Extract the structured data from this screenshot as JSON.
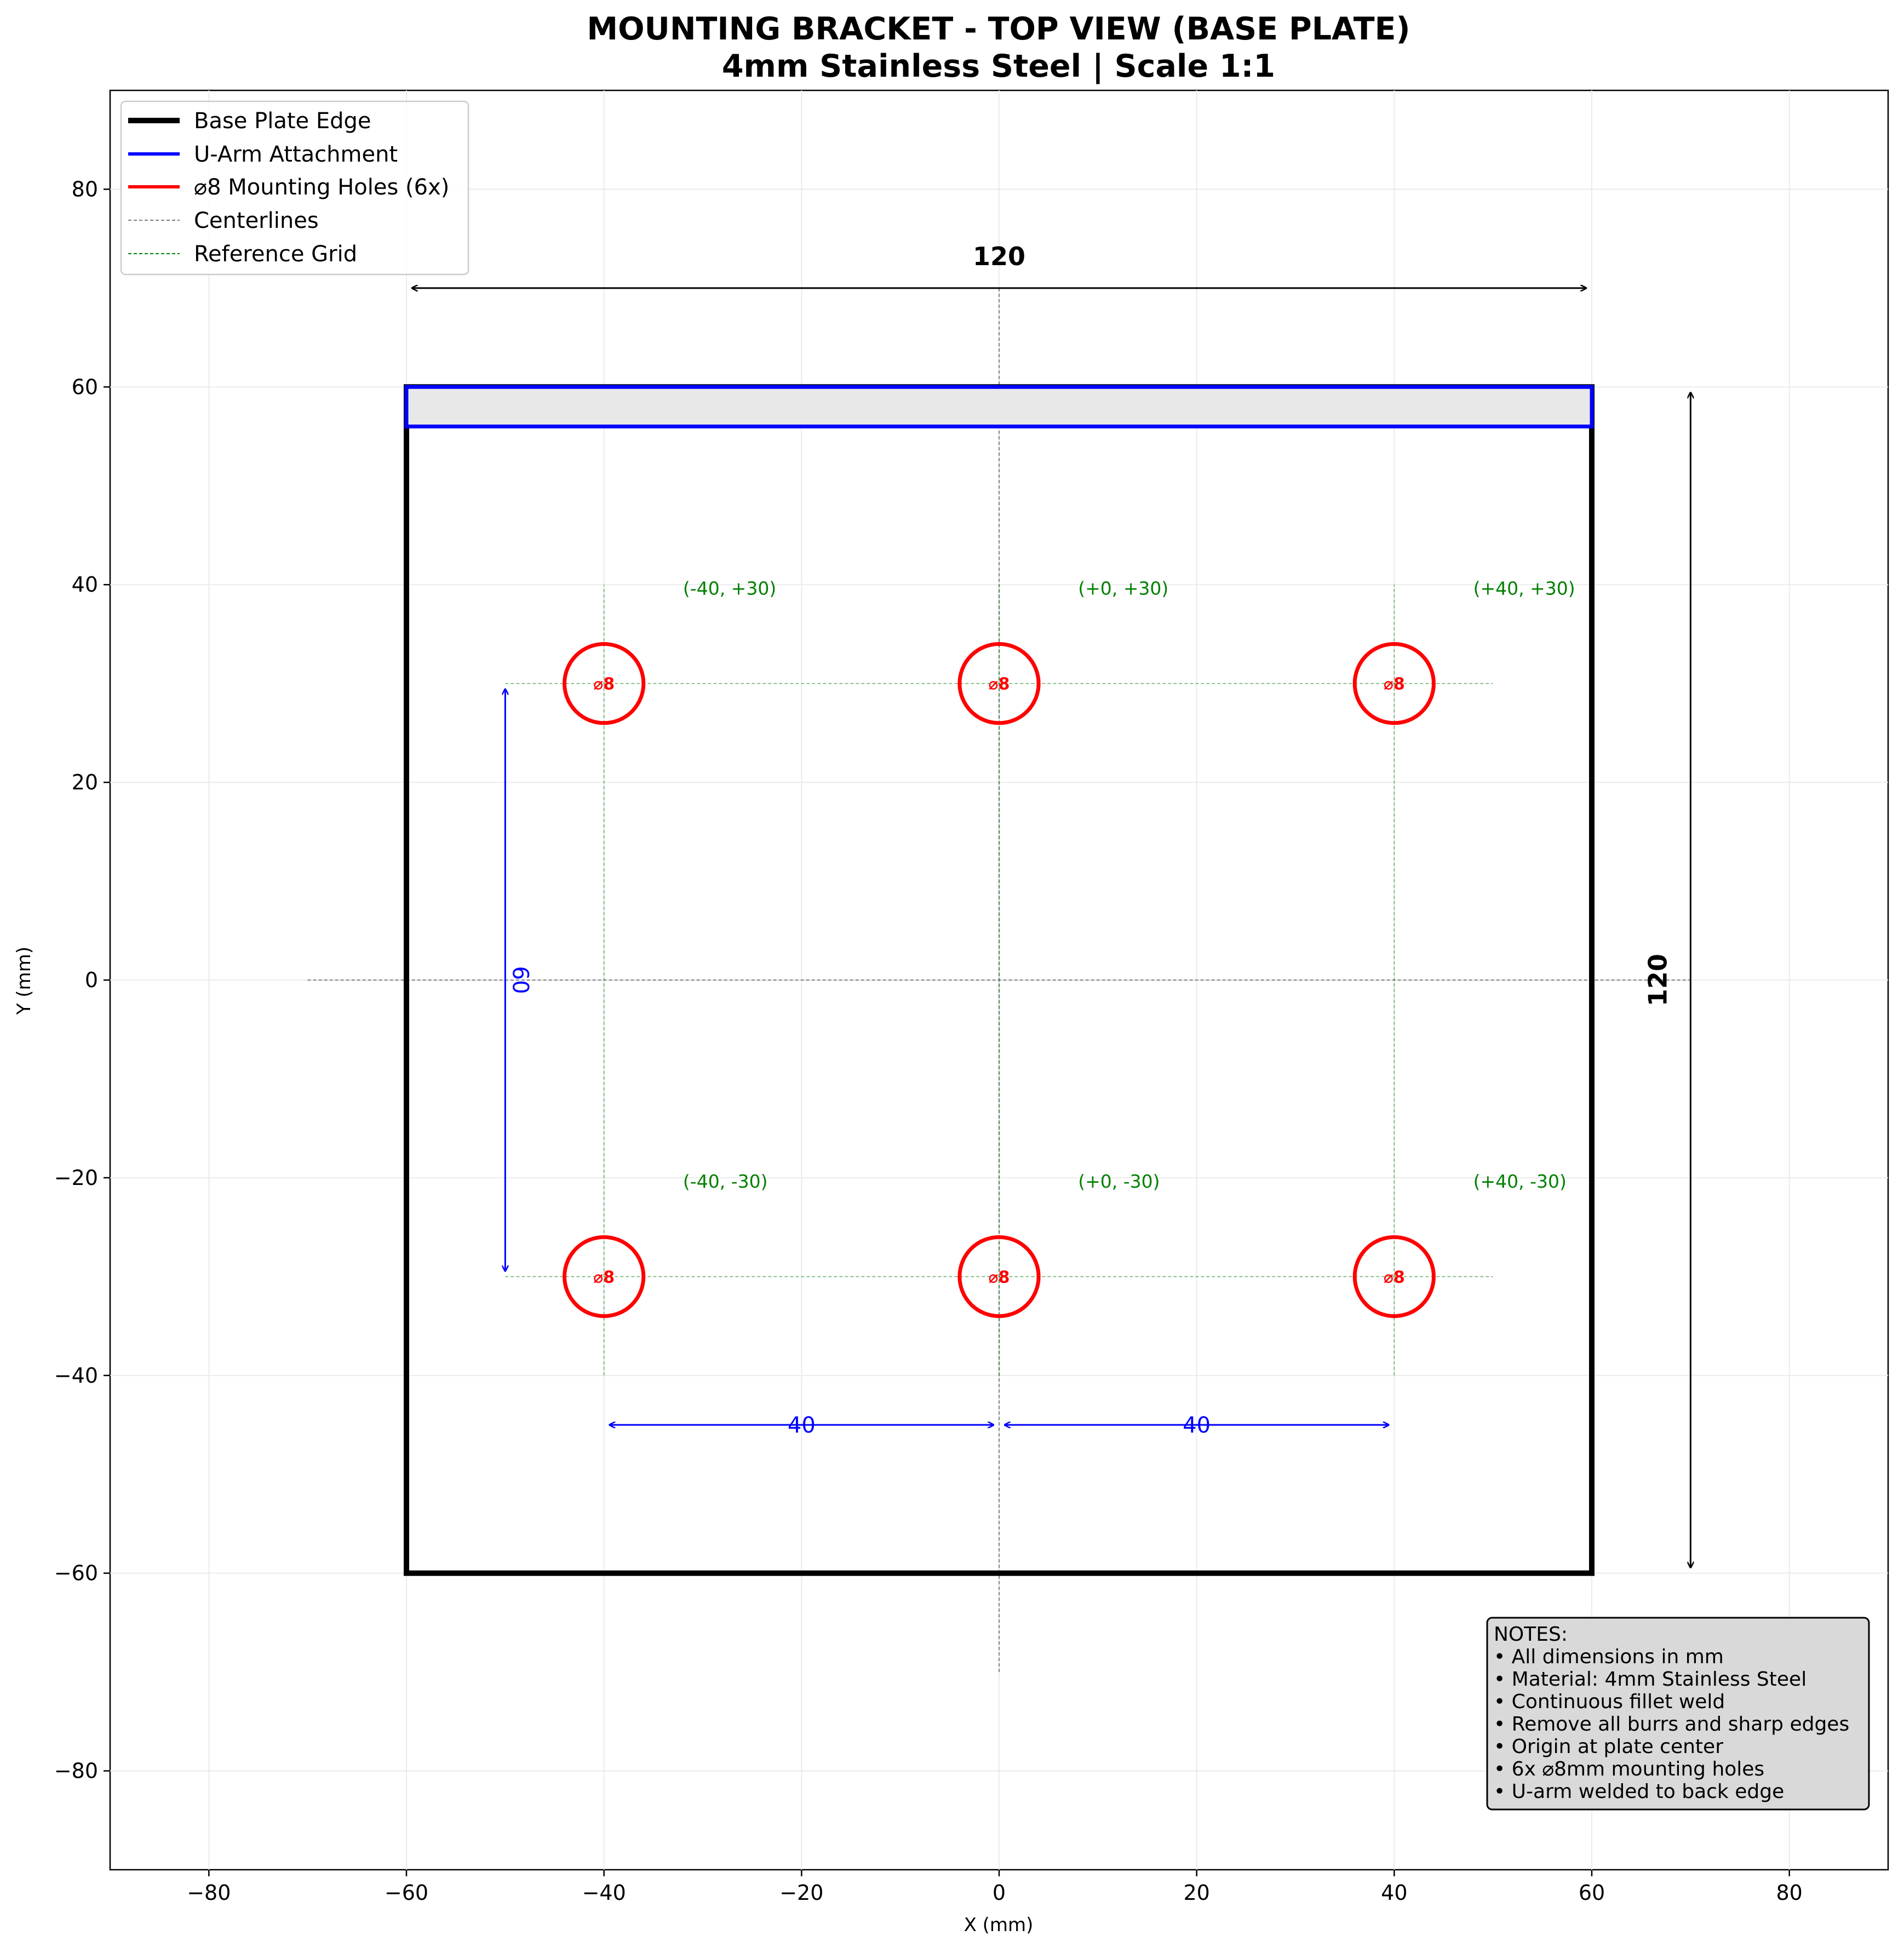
{
  "title": {
    "line1": "MOUNTING BRACKET - TOP VIEW (BASE PLATE)",
    "line2": "4mm Stainless Steel | Scale 1:1"
  },
  "axes": {
    "xlabel": "X (mm)",
    "ylabel": "Y (mm)",
    "xlim": [
      -90,
      90
    ],
    "ylim": [
      -90,
      90
    ],
    "xticks": [
      -80,
      -60,
      -40,
      -20,
      0,
      20,
      40,
      60,
      80
    ],
    "yticks": [
      -80,
      -60,
      -40,
      -20,
      0,
      20,
      40,
      60,
      80
    ],
    "xtick_labels": [
      "−80",
      "−60",
      "−40",
      "−20",
      "0",
      "20",
      "40",
      "60",
      "80"
    ],
    "ytick_labels": [
      "−80",
      "−60",
      "−40",
      "−20",
      "0",
      "20",
      "40",
      "60",
      "80"
    ],
    "grid": true
  },
  "legend": {
    "placement": "top-left",
    "items": [
      {
        "label": "Base Plate Edge",
        "color": "#000000",
        "style": "solid-thick"
      },
      {
        "label": "U-Arm Attachment",
        "color": "#0000ff",
        "style": "solid"
      },
      {
        "label": "⌀8 Mounting Holes (6x)",
        "color": "#ff0000",
        "style": "solid"
      },
      {
        "label": "Centerlines",
        "color": "#808080",
        "style": "dashed"
      },
      {
        "label": "Reference Grid",
        "color": "#008000",
        "style": "dashed"
      }
    ]
  },
  "geometry": {
    "plate": {
      "xmin": -60,
      "xmax": 60,
      "ymin": -60,
      "ymax": 60
    },
    "u_arm": {
      "xmin": -60,
      "xmax": 60,
      "ymin": 56,
      "ymax": 60
    },
    "hole_diameter": 8,
    "holes": [
      {
        "x": -40,
        "y": 30,
        "label": "⌀8",
        "coord_label": "(-40, +30)"
      },
      {
        "x": 0,
        "y": 30,
        "label": "⌀8",
        "coord_label": "(+0, +30)"
      },
      {
        "x": 40,
        "y": 30,
        "label": "⌀8",
        "coord_label": "(+40, +30)"
      },
      {
        "x": -40,
        "y": -30,
        "label": "⌀8",
        "coord_label": "(-40, -30)"
      },
      {
        "x": 0,
        "y": -30,
        "label": "⌀8",
        "coord_label": "(+0, -30)"
      },
      {
        "x": 40,
        "y": -30,
        "label": "⌀8",
        "coord_label": "(+40, -30)"
      }
    ]
  },
  "dimensions": {
    "overall_width": {
      "label": "120",
      "from": [
        -60,
        70
      ],
      "to": [
        60,
        70
      ]
    },
    "overall_height": {
      "label": "120",
      "from": [
        70,
        60
      ],
      "to": [
        70,
        -60
      ]
    },
    "hole_vertical": {
      "label": "60",
      "from": [
        -50,
        30
      ],
      "to": [
        -50,
        -30
      ]
    },
    "hole_left": {
      "label": "40",
      "from": [
        -40,
        -45
      ],
      "to": [
        0,
        -45
      ]
    },
    "hole_right": {
      "label": "40",
      "from": [
        0,
        -45
      ],
      "to": [
        40,
        -45
      ]
    }
  },
  "notes": [
    "NOTES:",
    "• All dimensions in mm",
    "• Material: 4mm Stainless Steel",
    "• Continuous fillet weld",
    "• Remove all burrs and sharp edges",
    "• Origin at plate center",
    "• 6x ⌀8mm mounting holes",
    "• U-arm welded to back edge"
  ]
}
